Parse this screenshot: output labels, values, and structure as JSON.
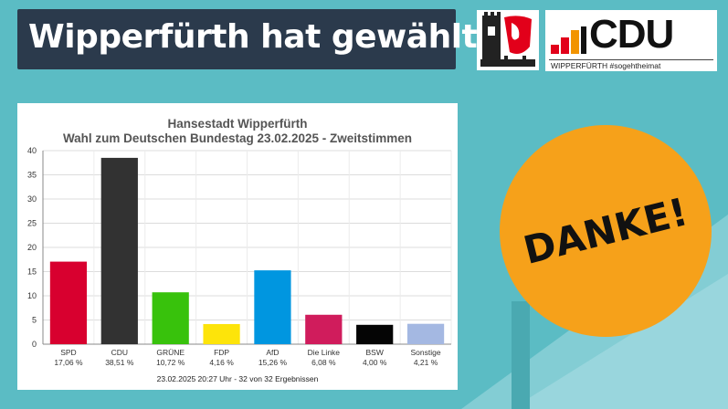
{
  "header": {
    "title": "Wipperfürth hat gewählt"
  },
  "cdu_logo": {
    "text": "CDU",
    "tagline": "WIPPERFÜRTH #sogehtheimat"
  },
  "danke": {
    "text": "DANKE!"
  },
  "colors": {
    "background": "#5bbcc4",
    "title_box": "#2b3a4c",
    "danke": "#f6a11a"
  },
  "chart_data": {
    "type": "bar",
    "title": "Hansestadt Wipperfürth",
    "subtitle": "Wahl zum Deutschen Bundestag 23.02.2025  - Zweitstimmen",
    "categories": [
      "SPD",
      "CDU",
      "GRÜNE",
      "FDP",
      "AfD",
      "Die Linke",
      "BSW",
      "Sonstige"
    ],
    "values": [
      17.06,
      38.51,
      10.72,
      4.16,
      15.26,
      6.08,
      4.0,
      4.21
    ],
    "value_labels": [
      "17,06 %",
      "38,51 %",
      "10,72 %",
      "4,16 %",
      "15,26 %",
      "6,08 %",
      "4,00 %",
      "4,21 %"
    ],
    "colors": [
      "#d8002f",
      "#323232",
      "#38c20c",
      "#fde40a",
      "#0096e0",
      "#d01c5c",
      "#050505",
      "#a4b8e2"
    ],
    "yticks": [
      0,
      5,
      10,
      15,
      20,
      25,
      30,
      35,
      40
    ],
    "ylim": [
      0,
      40
    ],
    "grid": true,
    "footer": "23.02.2025 20:27 Uhr - 32 von 32 Ergebnissen"
  }
}
